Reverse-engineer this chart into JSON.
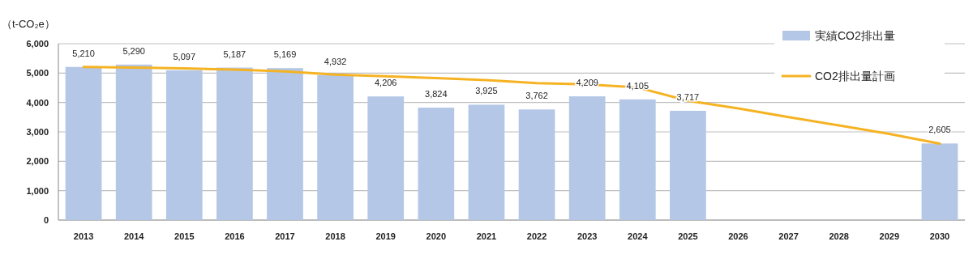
{
  "chart_data": {
    "type": "bar",
    "ylabel": "（t-CO₂e）",
    "categories": [
      "2013",
      "2014",
      "2015",
      "2016",
      "2017",
      "2018",
      "2019",
      "2020",
      "2021",
      "2022",
      "2023",
      "2024",
      "2025",
      "2026",
      "2027",
      "2028",
      "2029",
      "2030"
    ],
    "series": [
      {
        "name": "実績CO2排出量",
        "color": "#b4c7e7",
        "values": [
          5210,
          5290,
          5097,
          5187,
          5169,
          4932,
          4206,
          3824,
          3925,
          3762,
          4209,
          4105,
          3717,
          null,
          null,
          null,
          null,
          2605
        ],
        "value_labels": [
          "5,210",
          "5,290",
          "5,097",
          "5,187",
          "5,169",
          "4,932",
          "4,206",
          "3,824",
          "3,925",
          "3,762",
          "4,209",
          "4,105",
          "3,717",
          null,
          null,
          null,
          null,
          "2,605"
        ]
      },
      {
        "name": "CO2排出量計画",
        "type": "line",
        "color": "#f5b323",
        "values": [
          5210,
          5190,
          5160,
          5120,
          5060,
          4950,
          4890,
          4830,
          4760,
          4660,
          4620,
          4510,
          4060,
          3800,
          3500,
          3220,
          2930,
          2600
        ]
      }
    ],
    "ylim": [
      0,
      6000
    ],
    "yticks": [
      {
        "value": 0,
        "label": "0"
      },
      {
        "value": 1000,
        "label": "1,000"
      },
      {
        "value": 2000,
        "label": "2,000"
      },
      {
        "value": 3000,
        "label": "3,000"
      },
      {
        "value": 4000,
        "label": "4,000"
      },
      {
        "value": 5000,
        "label": "5,000"
      },
      {
        "value": 6000,
        "label": "6,000"
      }
    ],
    "grid": "y",
    "legend": "top right",
    "marker": "none",
    "line_style": "solid"
  }
}
